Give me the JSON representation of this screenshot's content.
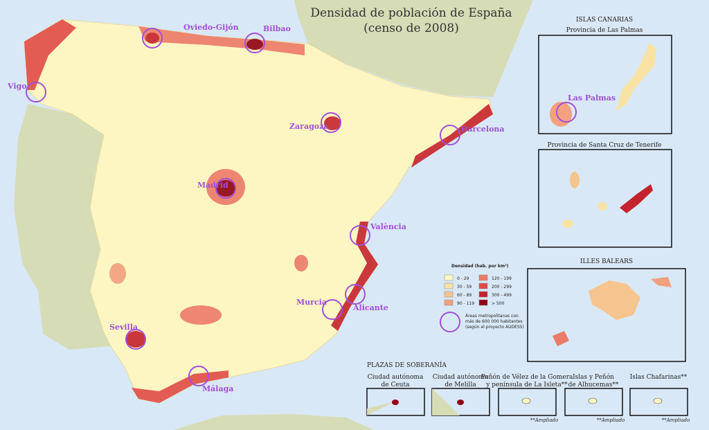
{
  "title": "Densidad de población de España",
  "subtitle": "(censo de 2008)",
  "cities": [
    "Oviedo-Gijón",
    "Bilbao",
    "Vigo",
    "Zaragoza",
    "Barcelona",
    "Madrid",
    "València",
    "Alicante",
    "Murcia",
    "Sevilla",
    "Málaga",
    "Las Palmas"
  ],
  "legend": {
    "title": "Densidad (hab. por km²)",
    "classes": [
      {
        "label": "0 - 29",
        "color": "#fdf7c4"
      },
      {
        "label": "30 - 59",
        "color": "#f8e3a4"
      },
      {
        "label": "60 - 89",
        "color": "#f6c58f"
      },
      {
        "label": "90 - 119",
        "color": "#f2a07f"
      },
      {
        "label": "120 - 199",
        "color": "#ec7a68"
      },
      {
        "label": "200 - 299",
        "color": "#df4b48"
      },
      {
        "label": "300 - 499",
        "color": "#c4232d"
      },
      {
        "label": "> 500",
        "color": "#8f0016"
      }
    ],
    "metro_note": [
      "Áreas metropolitanas con",
      "más de 600 000 habitantes",
      "(según el proyecto AUDES5)"
    ]
  },
  "canarias": {
    "title": "ISLAS CANARIAS",
    "las_palmas": "Provincia de Las Palmas",
    "tenerife": "Provincia de Santa Cruz de Tenerife"
  },
  "baleares": {
    "title": "ILLES BALEARS"
  },
  "soberania": {
    "title": "PLAZAS DE SOBERANÍA",
    "places": [
      {
        "lines": [
          "Ciudad autónoma",
          "de Ceuta"
        ]
      },
      {
        "lines": [
          "Ciudad autónoma",
          "de Melilla"
        ]
      },
      {
        "lines": [
          "Peñón de Vélez de la Gomera",
          "y península de La Isleta**"
        ],
        "note": "**Ampliado"
      },
      {
        "lines": [
          "Islas y Peñón",
          "de Alhucemas**"
        ],
        "note": "**Ampliado"
      },
      {
        "lines": [
          "Islas Chafarinas**"
        ],
        "note": "**Ampliado"
      }
    ]
  }
}
